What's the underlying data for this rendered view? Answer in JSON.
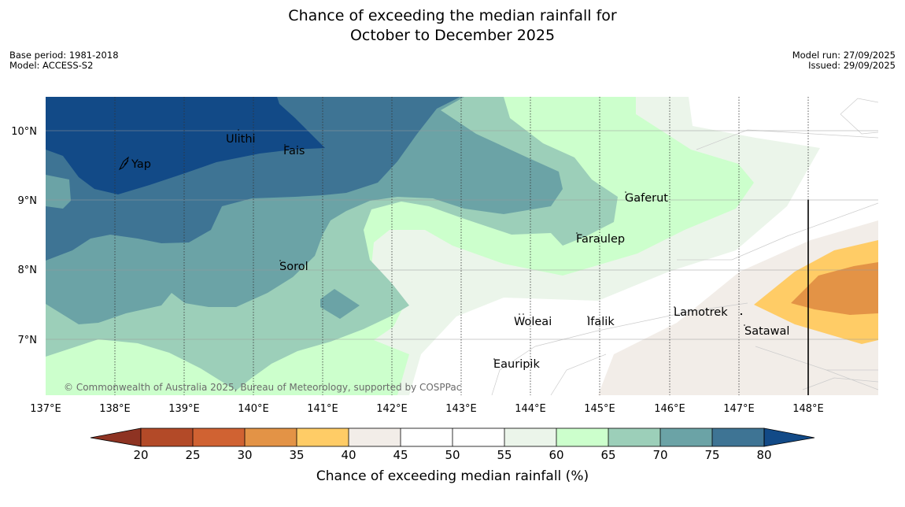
{
  "title_line1": "Chance of exceeding the median rainfall for",
  "title_line2": "October to December 2025",
  "base_period": "Base period: 1981-2018",
  "model": "Model: ACCESS-S2",
  "model_run": "Model run: 27/09/2025",
  "issued": "Issued: 29/09/2025",
  "copyright": "© Commonwealth of Australia 2025, Bureau of Meteorology, supported by COSPPac",
  "lat_labels": [
    "10°N",
    "9°N",
    "8°N",
    "7°N"
  ],
  "lon_labels": [
    "137°E",
    "138°E",
    "139°E",
    "140°E",
    "141°E",
    "142°E",
    "143°E",
    "144°E",
    "145°E",
    "146°E",
    "147°E",
    "148°E"
  ],
  "places": {
    "yap": "Yap",
    "ulithi": "Ulithi",
    "fais": "Fais",
    "gaferut": "Gaferut",
    "faraulep": "Faraulep",
    "sorol": "Sorol",
    "woleai": "Woleai",
    "ifalik": "Ifalik",
    "lamotrek": "Lamotrek",
    "satawal": "Satawal",
    "eauripik": "Eauripik"
  },
  "colorbar": {
    "label": "Chance of exceeding median rainfall (%)",
    "ticks": [
      "20",
      "25",
      "30",
      "35",
      "40",
      "45",
      "50",
      "55",
      "60",
      "65",
      "70",
      "75",
      "80"
    ],
    "colors": {
      "lt20": "#8e3322",
      "c20": "#b34a28",
      "c25": "#d06232",
      "c30": "#e39346",
      "c35": "#ffcc66",
      "c40": "#f2ede8",
      "c45": "#ffffff",
      "c50": "#ffffff",
      "c55": "#ebf5ea",
      "c60": "#ccffcc",
      "c65": "#9ccfb9",
      "c70": "#6ba3a6",
      "c75": "#3e7494",
      "gt80": "#124a87"
    }
  }
}
